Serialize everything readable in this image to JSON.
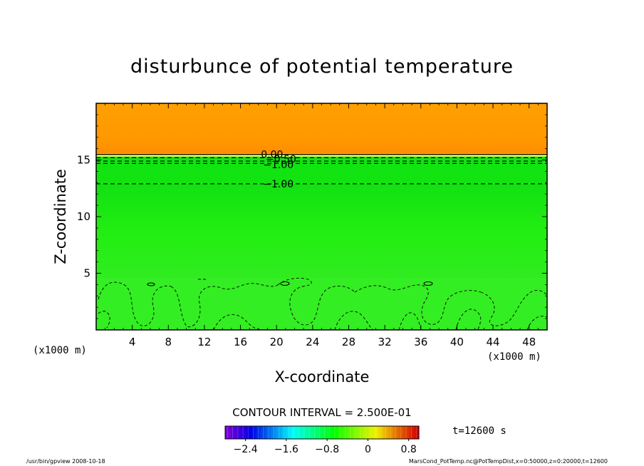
{
  "chart_data": {
    "type": "heatmap",
    "title": "disturbunce of potential temperature",
    "xlabel": "X-coordinate",
    "ylabel": "Z-coordinate",
    "x_unit_left": "(x1000 m)",
    "x_unit_right": "(x1000 m)",
    "xlim": [
      0,
      50
    ],
    "ylim": [
      0,
      20
    ],
    "x_ticks": [
      4,
      8,
      12,
      16,
      20,
      24,
      28,
      32,
      36,
      40,
      44,
      48
    ],
    "x_tick_labels": [
      "4",
      "8",
      "12",
      "16",
      "20",
      "24",
      "28",
      "32",
      "36",
      "40",
      "44",
      "48"
    ],
    "y_ticks": [
      5,
      10,
      15
    ],
    "y_tick_labels": [
      "5",
      "10",
      "15"
    ],
    "contour_interval_text": "CONTOUR INTERVAL = 2.500E-01",
    "time_label": "t=12600 s",
    "colorbar": {
      "range": [
        -2.8,
        1.0
      ],
      "ticks": [
        -2.4,
        -1.6,
        -0.8,
        0,
        0.8
      ],
      "tick_labels": [
        "−2.4",
        "−1.6",
        "−0.8",
        "0",
        "0.8"
      ]
    },
    "field_bands": [
      {
        "z0": 0.0,
        "z1": 4.5,
        "value": -0.55,
        "color": "#33ee22"
      },
      {
        "z0": 4.5,
        "z1": 12.9,
        "value": -0.75,
        "color": "#22ee11"
      },
      {
        "z0": 12.9,
        "z1": 15.3,
        "value": -0.95,
        "color": "#11e411"
      },
      {
        "z0": 15.3,
        "z1": 15.6,
        "value": 0.3,
        "color": "#eeee44"
      },
      {
        "z0": 15.6,
        "z1": 20.0,
        "value": 0.75,
        "color": "#ffa000"
      }
    ],
    "contour_labels": [
      {
        "text": "0.00",
        "x": 19.5,
        "z": 15.5
      },
      {
        "text": "-0.50",
        "x": 20.5,
        "z": 15.1
      },
      {
        "text": "-1.00",
        "x": 20.2,
        "z": 14.6
      },
      {
        "text": "-1.00",
        "x": 20.2,
        "z": 12.9
      }
    ],
    "contour_levels_z": [
      15.5,
      15.2,
      14.9,
      14.7,
      12.9
    ]
  },
  "footer": {
    "left": "/usr/bin/gpview   2008-10-18",
    "right": "MarsCond_PotTemp.nc@PotTempDist,x=0:50000,z=0:20000,t=12600"
  }
}
